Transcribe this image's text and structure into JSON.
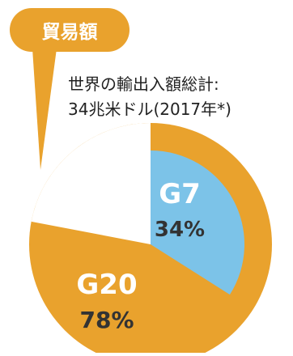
{
  "chart_data": {
    "type": "pie",
    "badge": "貿易額",
    "title_line1": "世界の輸出入額総計:",
    "title_line2": "34兆米ドル(2017年*)",
    "slices": [
      {
        "name": "G7",
        "value_label": "34%",
        "value": 34,
        "color": "#7cc3e8"
      },
      {
        "name": "G20",
        "value_label": "78%",
        "value": 78,
        "color": "#e9a22d"
      },
      {
        "name": "",
        "value_label": "",
        "value": 22,
        "color": "#ffffff"
      }
    ]
  }
}
